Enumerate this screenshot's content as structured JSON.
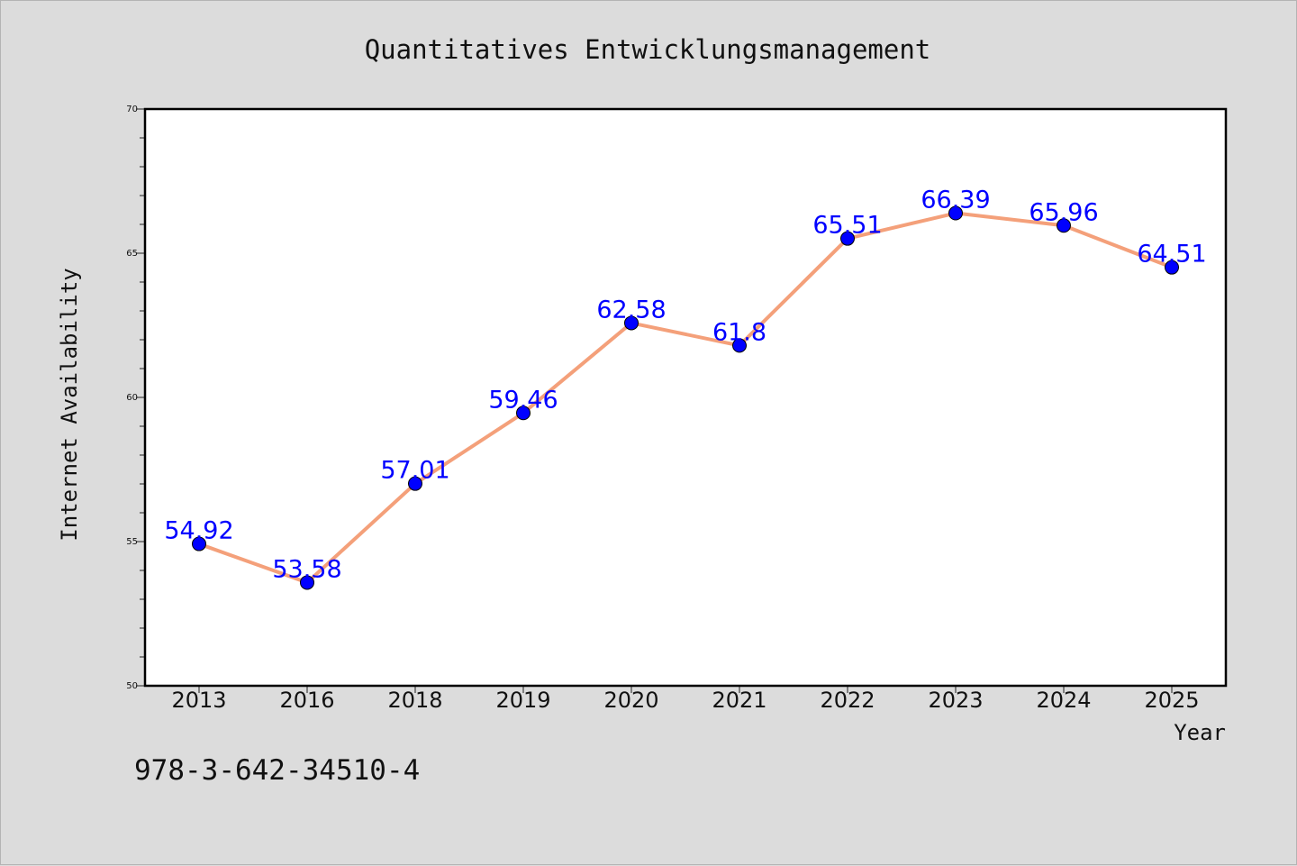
{
  "chart_data": {
    "type": "line",
    "title": "Quantitatives Entwicklungsmanagement",
    "xlabel": "Year",
    "ylabel": "Internet Availability",
    "categories": [
      "2013",
      "2016",
      "2018",
      "2019",
      "2020",
      "2021",
      "2022",
      "2023",
      "2024",
      "2025"
    ],
    "series": [
      {
        "values": [
          54.92,
          53.58,
          57.01,
          59.46,
          62.58,
          61.8,
          65.51,
          66.39,
          65.96,
          64.51
        ]
      }
    ],
    "data_labels": [
      "54.92",
      "53.58",
      "57.01",
      "59.46",
      "62.58",
      "61.8",
      "65.51",
      "66.39",
      "65.96",
      "64.51"
    ],
    "ylim": [
      50,
      70
    ],
    "yticks": [
      "50",
      "55",
      "60",
      "65",
      "70"
    ],
    "grid": false,
    "legend": "none",
    "colors": {
      "line": "#f4a07a",
      "marker": "#0000ff",
      "label": "#0000ff",
      "background": "#dcdcdc",
      "plot_bg": "#ffffff"
    }
  },
  "footer": {
    "code": "978-3-642-34510-4"
  }
}
